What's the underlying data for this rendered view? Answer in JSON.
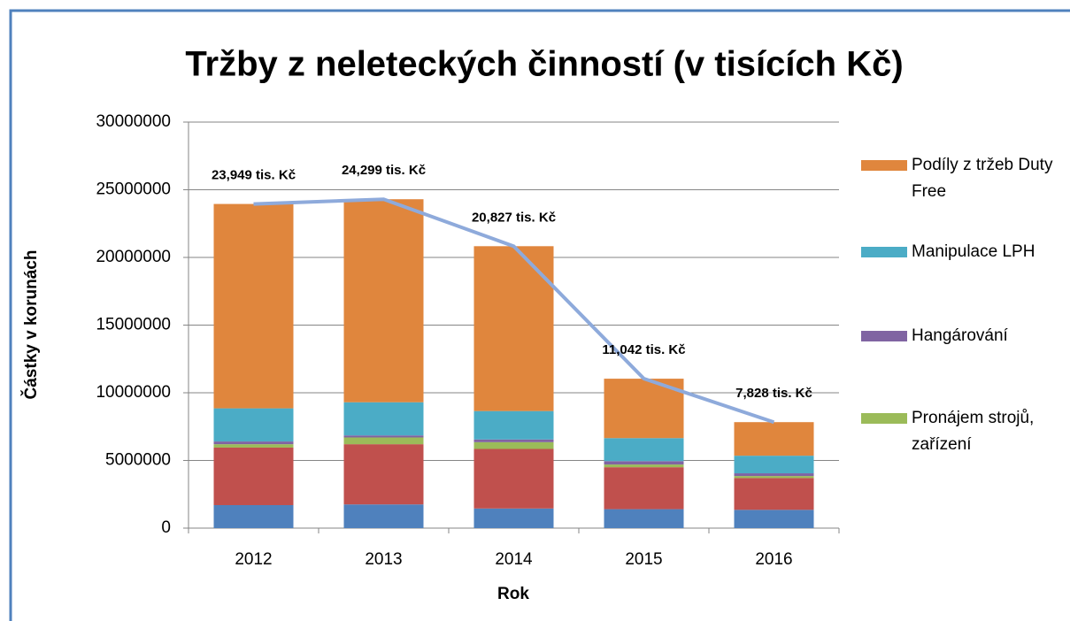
{
  "chart_data": {
    "type": "bar",
    "stacked": true,
    "title": "Tržby z neleteckých činností (v tisících Kč)",
    "x_label": "Rok",
    "y_label": "Částky v korunách",
    "categories": [
      "2012",
      "2013",
      "2014",
      "2015",
      "2016"
    ],
    "series": [
      {
        "color": "#4f81bd",
        "values": [
          1700000,
          1750000,
          1450000,
          1400000,
          1350000
        ]
      },
      {
        "color": "#c0504d",
        "values": [
          4250000,
          4450000,
          4400000,
          3100000,
          2350000
        ]
      },
      {
        "name": "Pronájem strojů, zařízení",
        "color": "#9bbb59",
        "values": [
          250000,
          500000,
          500000,
          200000,
          150000
        ]
      },
      {
        "name": "Hangárování",
        "color": "#8064a2",
        "values": [
          200000,
          150000,
          200000,
          250000,
          200000
        ]
      },
      {
        "name": "Manipulace LPH",
        "color": "#4bacc6",
        "values": [
          2450000,
          2450000,
          2100000,
          1700000,
          1300000
        ]
      },
      {
        "name": "Podíly z tržeb Duty Free",
        "color": "#e0863d",
        "values": [
          15100000,
          15000000,
          12180000,
          4390000,
          2480000
        ]
      }
    ],
    "line": {
      "color": "#8eaadb",
      "values": [
        23949000,
        24299000,
        20827000,
        11042000,
        7828000
      ],
      "value_labels": [
        "23,949 tis. Kč",
        "24,299 tis. Kč",
        "20,827 tis. Kč",
        "11,042 tis. Kč",
        "7,828 tis. Kč"
      ]
    },
    "ylim": [
      0,
      30000000
    ],
    "yticks": [
      0,
      5000000,
      10000000,
      15000000,
      20000000,
      25000000,
      30000000
    ],
    "grid": true
  }
}
